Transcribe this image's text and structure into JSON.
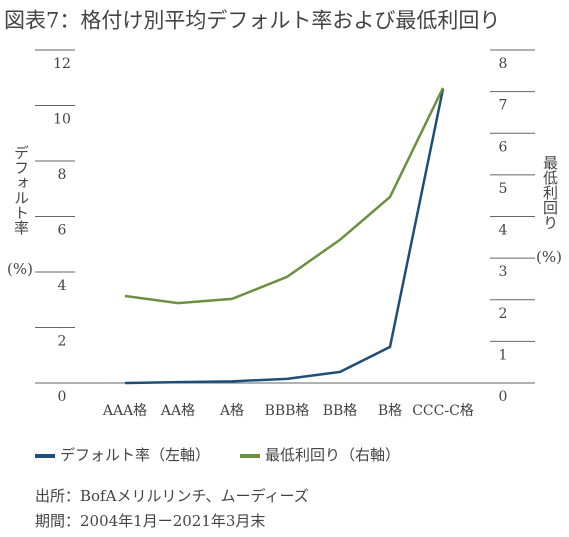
{
  "chart_data": {
    "type": "line",
    "title": "図表7：格付け別平均デフォルト率および最低利回り",
    "y_label": "デフォルト率",
    "y_unit": "(%)",
    "y2_label": "最低利回り",
    "y2_unit": "(%)",
    "categories": [
      "AAA格",
      "AA格",
      "A格",
      "BBB格",
      "BB格",
      "B格",
      "CCC-C格"
    ],
    "series": [
      {
        "name": "デフォルト率（左軸）",
        "color": "#1d4f78",
        "values": [
          0.0,
          0.03,
          0.06,
          0.15,
          0.4,
          1.3,
          10.6
        ]
      },
      {
        "name": "最低利回り（右軸）",
        "color": "#6b9040",
        "axis": "y2",
        "values": [
          2.09,
          1.92,
          2.02,
          2.55,
          3.44,
          4.47,
          7.09
        ]
      }
    ],
    "ylim": [
      0,
      12
    ],
    "yticks": [
      0,
      2,
      4,
      6,
      8,
      10,
      12
    ],
    "y2lim": [
      0,
      8
    ],
    "y2ticks": [
      0,
      1,
      2,
      3,
      4,
      5,
      6,
      7,
      8
    ],
    "notes": [
      "出所：BofAメリルリンチ、ムーディーズ",
      "期間：2004年1月ー2021年3月末"
    ]
  }
}
